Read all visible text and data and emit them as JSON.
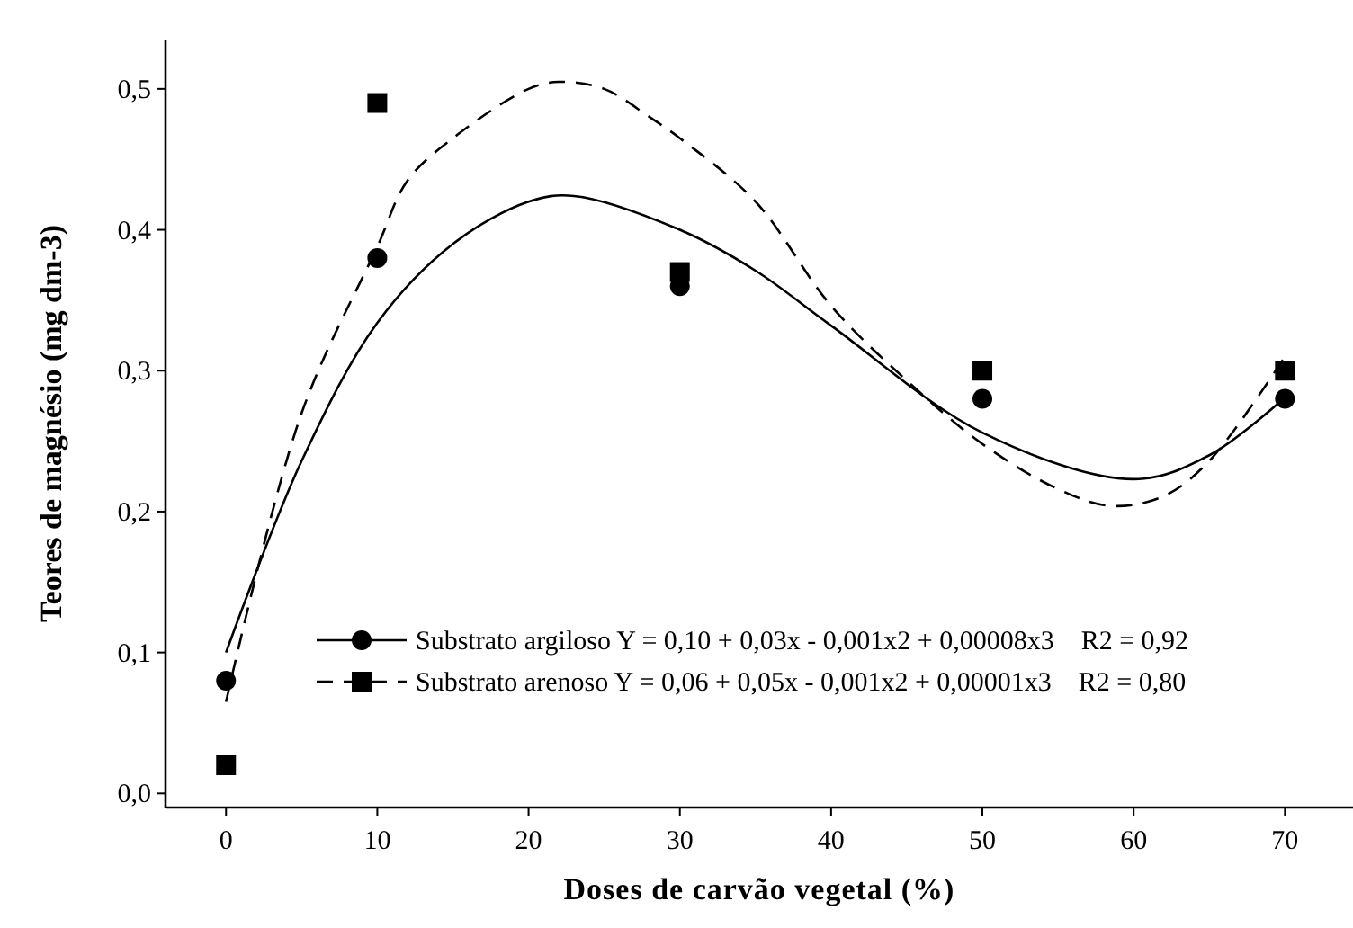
{
  "chart_data": {
    "type": "scatter",
    "xlabel": "Doses de carvão vegetal (%)",
    "ylabel": "Teores de magnésio (mg dm-3)",
    "xlim": [
      -4,
      74.5
    ],
    "ylim": [
      -0.01,
      0.535
    ],
    "xticks": [
      0,
      10,
      20,
      30,
      40,
      50,
      60,
      70
    ],
    "yticks": [
      {
        "value": 0,
        "label": "0,0"
      },
      {
        "value": 0.1,
        "label": "0,1"
      },
      {
        "value": 0.2,
        "label": "0,2"
      },
      {
        "value": 0.3,
        "label": "0,3"
      },
      {
        "value": 0.4,
        "label": "0,4"
      },
      {
        "value": 0.5,
        "label": "0,5"
      }
    ],
    "legend": "bottom right",
    "grid": false,
    "series": [
      {
        "name": "Substrato argiloso Y = 0,10 + 0,03x - 0,001x2 + 0,00008x3    R2 = 0,92",
        "marker": "circle",
        "color": "#000000",
        "x": [
          0,
          10,
          30,
          50,
          70
        ],
        "values": [
          0.08,
          0.38,
          0.36,
          0.28,
          0.28
        ]
      },
      {
        "name": "Substrato arenoso Y = 0,06 + 0,05x - 0,001x2 + 0,00001x3    R2 = 0,80",
        "marker": "square",
        "color": "#000000",
        "x": [
          0,
          10,
          30,
          50,
          70
        ],
        "values": [
          0.02,
          0.49,
          0.37,
          0.3,
          0.3
        ]
      },
      {
        "type": "line",
        "line_style": "solid",
        "marker": "none",
        "color": "#000000",
        "x": [
          0,
          5,
          10,
          15,
          20,
          23,
          30,
          35,
          40,
          50,
          60,
          65,
          70
        ],
        "values": [
          0.1,
          0.236,
          0.334,
          0.39,
          0.42,
          0.424,
          0.4,
          0.371,
          0.332,
          0.256,
          0.223,
          0.24,
          0.281
        ]
      },
      {
        "type": "line",
        "line_style": "dashed",
        "marker": "none",
        "color": "#000000",
        "x": [
          0,
          5,
          10,
          12,
          15,
          20,
          22,
          25,
          28,
          30,
          35,
          40,
          45,
          50,
          55,
          58.5,
          62,
          65,
          70
        ],
        "values": [
          0.065,
          0.27,
          0.388,
          0.435,
          0.465,
          0.5,
          0.505,
          0.5,
          0.48,
          0.465,
          0.42,
          0.346,
          0.293,
          0.248,
          0.216,
          0.204,
          0.211,
          0.236,
          0.31
        ]
      }
    ]
  }
}
